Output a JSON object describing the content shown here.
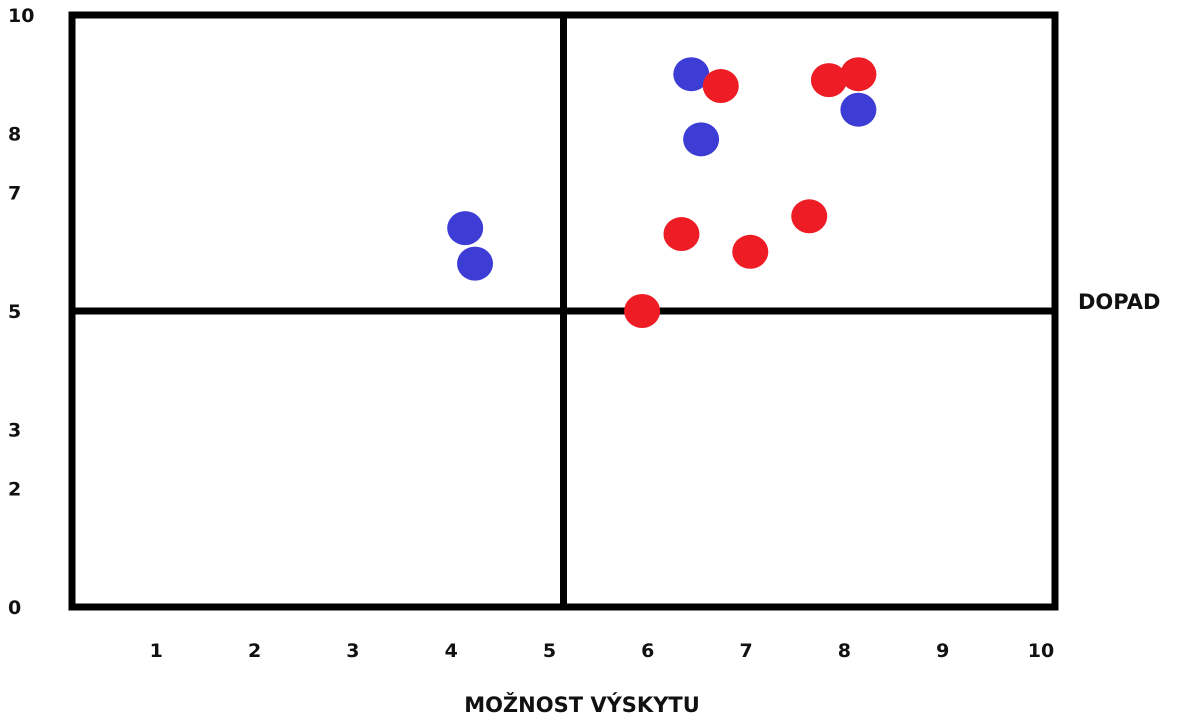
{
  "chart_data": {
    "type": "scatter",
    "title": "",
    "xlabel": "MOŽNOST VÝSKYTU",
    "ylabel": "DOPAD",
    "xlim": [
      0,
      10
    ],
    "ylim": [
      0,
      10
    ],
    "x_ticks": [
      "1",
      "2",
      "3",
      "4",
      "5",
      "6",
      "7",
      "8",
      "9",
      "10"
    ],
    "y_ticks": [
      "0",
      "2",
      "3",
      "5",
      "7",
      "8",
      "10"
    ],
    "quadrant_split": {
      "x": 5,
      "y": 5
    },
    "grid": false,
    "series": [
      {
        "color": "#3d3dd6",
        "points": [
          {
            "x": 4.0,
            "y": 6.4
          },
          {
            "x": 4.1,
            "y": 5.8
          },
          {
            "x": 6.3,
            "y": 9.0
          },
          {
            "x": 6.4,
            "y": 7.9
          },
          {
            "x": 8.0,
            "y": 8.4
          }
        ]
      },
      {
        "color": "#ee1c24",
        "points": [
          {
            "x": 5.8,
            "y": 5.0
          },
          {
            "x": 6.2,
            "y": 6.3
          },
          {
            "x": 6.6,
            "y": 8.8
          },
          {
            "x": 6.9,
            "y": 6.0
          },
          {
            "x": 7.5,
            "y": 6.6
          },
          {
            "x": 7.7,
            "y": 8.9
          },
          {
            "x": 8.0,
            "y": 9.0
          }
        ]
      }
    ]
  }
}
